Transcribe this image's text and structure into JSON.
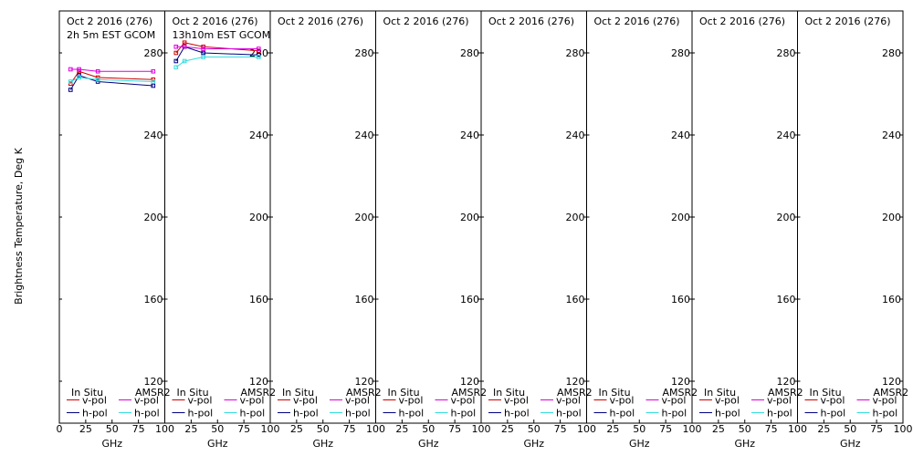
{
  "y_axis_label": "Brightness Temperature, Deg K",
  "x_axis_label": "GHz",
  "colors": {
    "insitu_v": "#cc0000",
    "insitu_h": "#000080",
    "amsr2_v": "#dd00dd",
    "amsr2_h": "#33dddd"
  },
  "chart_data": {
    "type": "line",
    "xlim": [
      0,
      100
    ],
    "ylim": [
      105,
      300
    ],
    "yticks": [
      120,
      160,
      200,
      240,
      280
    ],
    "xticks": [
      0,
      25,
      50,
      75,
      100
    ],
    "grid": false,
    "legend_placement": "bottom",
    "legend": {
      "group1": "In Situ",
      "group2": "AMSR2",
      "v_label": "v-pol",
      "h_label": "h-pol"
    },
    "panels": [
      {
        "title_line1": "Oct 2 2016 (276)",
        "title_line2": "2h 5m EST GCOM",
        "series": [
          {
            "name": "In Situ v-pol",
            "x": [
              10.65,
              18.7,
              36.5,
              89
            ],
            "y": [
              265,
              271,
              268,
              267
            ]
          },
          {
            "name": "In Situ h-pol",
            "x": [
              10.65,
              18.7,
              36.5,
              89
            ],
            "y": [
              262,
              269,
              266,
              264
            ]
          },
          {
            "name": "AMSR2 v-pol",
            "x": [
              10.65,
              18.7,
              36.5,
              89
            ],
            "y": [
              272,
              272,
              271,
              271
            ]
          },
          {
            "name": "AMSR2 h-pol",
            "x": [
              10.65,
              18.7,
              36.5,
              89
            ],
            "y": [
              266,
              268,
              267,
              266
            ]
          }
        ]
      },
      {
        "title_line1": "Oct 2 2016 (276)",
        "title_line2": "13h10m EST GCOM",
        "series": [
          {
            "name": "In Situ v-pol",
            "x": [
              10.65,
              18.7,
              36.5,
              89
            ],
            "y": [
              280,
              285,
              283,
              281
            ]
          },
          {
            "name": "In Situ h-pol",
            "x": [
              10.65,
              18.7,
              36.5,
              89
            ],
            "y": [
              276,
              283,
              280,
              279
            ]
          },
          {
            "name": "AMSR2 v-pol",
            "x": [
              10.65,
              18.7,
              36.5,
              89
            ],
            "y": [
              283,
              283,
              282,
              282
            ]
          },
          {
            "name": "AMSR2 h-pol",
            "x": [
              10.65,
              18.7,
              36.5,
              89
            ],
            "y": [
              273,
              276,
              278,
              278
            ]
          }
        ]
      },
      {
        "title_line1": "Oct 2 2016 (276)",
        "title_line2": "",
        "series": []
      },
      {
        "title_line1": "Oct 2 2016 (276)",
        "title_line2": "",
        "series": []
      },
      {
        "title_line1": "Oct 2 2016 (276)",
        "title_line2": "",
        "series": []
      },
      {
        "title_line1": "Oct 2 2016 (276)",
        "title_line2": "",
        "series": []
      },
      {
        "title_line1": "Oct 2 2016 (276)",
        "title_line2": "",
        "series": []
      },
      {
        "title_line1": "Oct 2 2016 (276)",
        "title_line2": "",
        "series": []
      }
    ]
  }
}
